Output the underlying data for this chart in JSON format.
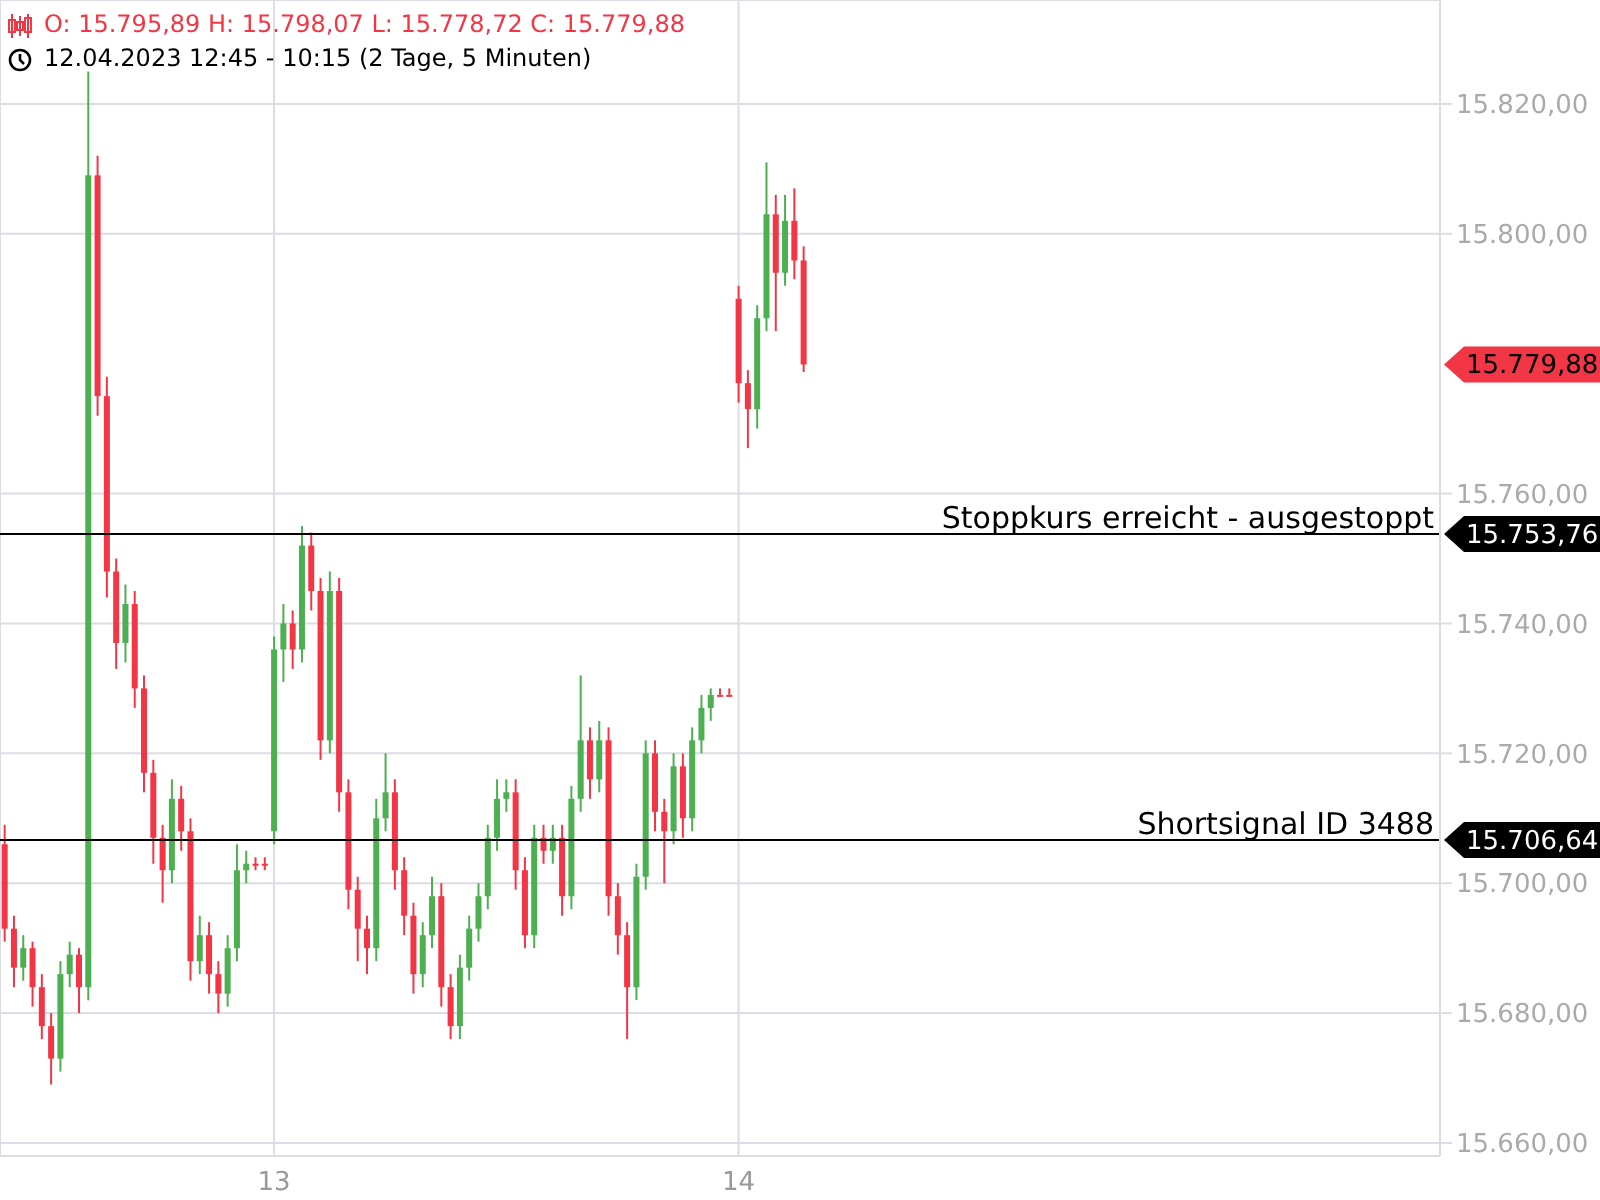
{
  "chart_data": {
    "type": "candlestick",
    "title": "O: 15.795,89  H: 15.798,07  L: 15.778,72  C: 15.779,88",
    "subtitle": "12.04.2023 12:45 - 10:15  (2 Tage, 5 Minuten)",
    "categories": [
      null,
      null,
      null,
      null,
      null,
      null,
      null,
      null,
      null,
      null,
      null,
      null,
      null,
      null,
      null,
      null,
      null,
      null,
      null,
      null,
      null,
      null,
      null,
      null,
      null,
      null,
      null,
      null,
      null,
      "13",
      null,
      null,
      null,
      null,
      null,
      null,
      null,
      null,
      null,
      null,
      null,
      null,
      null,
      null,
      null,
      null,
      null,
      null,
      null,
      null,
      null,
      null,
      null,
      null,
      null,
      null,
      null,
      null,
      null,
      null,
      null,
      null,
      null,
      null,
      null,
      null,
      null,
      null,
      null,
      null,
      null,
      null,
      null,
      null,
      null,
      null,
      null,
      null,
      null,
      "14",
      null,
      null,
      null,
      null,
      null,
      null,
      null,
      null,
      null,
      null,
      null,
      null,
      null,
      null,
      null,
      null,
      null,
      null,
      null,
      null,
      null,
      null,
      null,
      null,
      null,
      null,
      null,
      null,
      null,
      null,
      null,
      null,
      null,
      null,
      null,
      null,
      null,
      null,
      null,
      null,
      null,
      null,
      null,
      null,
      null,
      null,
      null,
      null,
      null,
      null,
      null,
      null,
      null,
      null,
      null,
      null,
      null,
      null,
      null,
      null,
      null,
      null,
      null,
      null,
      null,
      null,
      null,
      null,
      null,
      null,
      null,
      null,
      null,
      null,
      null
    ],
    "ohlc": [
      [
        15706,
        15709,
        15691,
        15693
      ],
      [
        15693,
        15695,
        15684,
        15687
      ],
      [
        15687,
        15692,
        15685,
        15690
      ],
      [
        15690,
        15691,
        15681,
        15684
      ],
      [
        15684,
        15686,
        15676,
        15678
      ],
      [
        15678,
        15680,
        15669,
        15673
      ],
      [
        15673,
        15688,
        15671,
        15686
      ],
      [
        15686,
        15691,
        15684,
        15689
      ],
      [
        15689,
        15690,
        15680,
        15684
      ],
      [
        15684,
        15825,
        15682,
        15809
      ],
      [
        15809,
        15812,
        15772,
        15775
      ],
      [
        15775,
        15778,
        15744,
        15748
      ],
      [
        15748,
        15750,
        15733,
        15737
      ],
      [
        15737,
        15746,
        15734,
        15743
      ],
      [
        15743,
        15745,
        15727,
        15730
      ],
      [
        15730,
        15732,
        15714,
        15717
      ],
      [
        15717,
        15719,
        15703,
        15707
      ],
      [
        15707,
        15709,
        15697,
        15702
      ],
      [
        15702,
        15716,
        15700,
        15713
      ],
      [
        15713,
        15715,
        15705,
        15708
      ],
      [
        15708,
        15710,
        15685,
        15688
      ],
      [
        15688,
        15695,
        15686,
        15692
      ],
      [
        15692,
        15694,
        15683,
        15686
      ],
      [
        15686,
        15688,
        15680,
        15683
      ],
      [
        15683,
        15692,
        15681,
        15690
      ],
      [
        15690,
        15706,
        15688,
        15702
      ],
      [
        15702,
        15705,
        15700,
        15703
      ],
      [
        15703,
        15704,
        15702,
        15703
      ],
      [
        15703,
        15704,
        15702,
        15703
      ],
      [
        15708,
        15738,
        15706,
        15736
      ],
      [
        15736,
        15743,
        15731,
        15740
      ],
      [
        15740,
        15742,
        15733,
        15736
      ],
      [
        15736,
        15755,
        15734,
        15752
      ],
      [
        15752,
        15754,
        15742,
        15745
      ],
      [
        15745,
        15747,
        15719,
        15722
      ],
      [
        15722,
        15748,
        15720,
        15745
      ],
      [
        15745,
        15747,
        15711,
        15714
      ],
      [
        15714,
        15716,
        15696,
        15699
      ],
      [
        15699,
        15701,
        15688,
        15693
      ],
      [
        15693,
        15695,
        15686,
        15690
      ],
      [
        15690,
        15713,
        15688,
        15710
      ],
      [
        15710,
        15720,
        15708,
        15714
      ],
      [
        15714,
        15716,
        15699,
        15702
      ],
      [
        15702,
        15704,
        15692,
        15695
      ],
      [
        15695,
        15697,
        15683,
        15686
      ],
      [
        15686,
        15694,
        15684,
        15692
      ],
      [
        15692,
        15701,
        15690,
        15698
      ],
      [
        15698,
        15700,
        15681,
        15684
      ],
      [
        15684,
        15686,
        15676,
        15678
      ],
      [
        15678,
        15689,
        15676,
        15687
      ],
      [
        15687,
        15695,
        15685,
        15693
      ],
      [
        15693,
        15700,
        15691,
        15698
      ],
      [
        15698,
        15709,
        15696,
        15707
      ],
      [
        15707,
        15716,
        15705,
        15713
      ],
      [
        15713,
        15716,
        15711,
        15714
      ],
      [
        15714,
        15716,
        15699,
        15702
      ],
      [
        15702,
        15704,
        15690,
        15692
      ],
      [
        15692,
        15709,
        15690,
        15707
      ],
      [
        15707,
        15709,
        15703,
        15705
      ],
      [
        15705,
        15709,
        15703,
        15707
      ],
      [
        15707,
        15709,
        15695,
        15698
      ],
      [
        15698,
        15715,
        15696,
        15713
      ],
      [
        15713,
        15732,
        15711,
        15722
      ],
      [
        15722,
        15724,
        15713,
        15716
      ],
      [
        15716,
        15725,
        15714,
        15722
      ],
      [
        15722,
        15724,
        15695,
        15698
      ],
      [
        15698,
        15700,
        15689,
        15692
      ],
      [
        15692,
        15694,
        15676,
        15684
      ],
      [
        15684,
        15703,
        15682,
        15701
      ],
      [
        15701,
        15722,
        15699,
        15720
      ],
      [
        15720,
        15722,
        15708,
        15711
      ],
      [
        15711,
        15713,
        15700,
        15708
      ],
      [
        15708,
        15720,
        15706,
        15718
      ],
      [
        15718,
        15720,
        15707,
        15710
      ],
      [
        15710,
        15724,
        15708,
        15722
      ],
      [
        15722,
        15729,
        15720,
        15727
      ],
      [
        15727,
        15730,
        15725,
        15729
      ],
      [
        15729,
        15730,
        15729,
        15729
      ],
      [
        15729,
        15730,
        15729,
        15729
      ],
      [
        15790,
        15792,
        15774,
        15777
      ],
      [
        15777,
        15779,
        15767,
        15773
      ],
      [
        15773,
        15789,
        15770,
        15787
      ],
      [
        15787,
        15811,
        15785,
        15803
      ],
      [
        15803,
        15806,
        15785,
        15794
      ],
      [
        15794,
        15806,
        15792,
        15802
      ],
      [
        15802,
        15807,
        15793,
        15795.89
      ],
      [
        15795.89,
        15798.07,
        15778.72,
        15779.88
      ],
      null,
      null,
      null,
      null,
      null,
      null,
      null,
      null,
      null,
      null,
      null,
      null,
      null,
      null,
      null,
      null,
      null,
      null,
      null,
      null,
      null,
      null,
      null,
      null,
      null,
      null,
      null,
      null,
      null,
      null,
      null,
      null,
      null,
      null,
      null,
      null,
      null,
      null,
      null,
      null,
      null,
      null,
      null,
      null,
      null,
      null,
      null,
      null,
      null,
      null,
      null,
      null,
      null,
      null,
      null,
      null,
      null,
      null,
      null,
      null,
      null,
      null,
      null,
      null,
      null,
      null,
      null,
      null
    ],
    "colors": [
      "#f23645",
      "#f23645",
      "#4caf50",
      "#f23645",
      "#f23645",
      "#f23645",
      "#4caf50",
      "#4caf50",
      "#f23645",
      "#4caf50",
      "#f23645",
      "#f23645",
      "#f23645",
      "#4caf50",
      "#f23645",
      "#f23645",
      "#f23645",
      "#f23645",
      "#4caf50",
      "#f23645",
      "#f23645",
      "#4caf50",
      "#f23645",
      "#f23645",
      "#4caf50",
      "#4caf50",
      "#4caf50",
      "#f23645",
      "#f23645",
      "#4caf50",
      "#4caf50",
      "#f23645",
      "#4caf50",
      "#f23645",
      "#f23645",
      "#4caf50",
      "#f23645",
      "#f23645",
      "#f23645",
      "#f23645",
      "#4caf50",
      "#4caf50",
      "#f23645",
      "#f23645",
      "#f23645",
      "#4caf50",
      "#4caf50",
      "#f23645",
      "#f23645",
      "#4caf50",
      "#4caf50",
      "#4caf50",
      "#4caf50",
      "#4caf50",
      "#4caf50",
      "#f23645",
      "#f23645",
      "#4caf50",
      "#f23645",
      "#4caf50",
      "#f23645",
      "#4caf50",
      "#4caf50",
      "#f23645",
      "#4caf50",
      "#f23645",
      "#f23645",
      "#f23645",
      "#4caf50",
      "#4caf50",
      "#f23645",
      "#f23645",
      "#4caf50",
      "#f23645",
      "#4caf50",
      "#4caf50",
      "#4caf50",
      "#f23645",
      "#f23645",
      "#f23645",
      "#f23645",
      "#4caf50",
      "#4caf50",
      "#f23645",
      "#4caf50",
      "#f23645",
      "#f23645",
      null,
      null,
      null,
      null,
      null,
      null,
      null,
      null,
      null,
      null,
      null,
      null,
      null,
      null,
      null,
      null,
      null,
      null,
      null,
      null,
      null,
      null,
      null,
      null,
      null,
      null,
      null,
      null,
      null,
      null,
      null,
      null,
      null,
      null,
      null,
      null,
      null,
      null,
      null,
      null,
      null,
      null,
      null,
      null,
      null,
      null,
      null,
      null,
      null,
      null,
      null,
      null,
      null,
      null,
      null,
      null,
      null,
      null,
      null,
      null,
      null,
      null,
      null,
      null,
      null,
      null,
      null,
      null
    ],
    "ylim": [
      15658,
      15836
    ],
    "yticks": [
      {
        "value": 15660,
        "label": "15.660,00"
      },
      {
        "value": 15680,
        "label": "15.680,00"
      },
      {
        "value": 15700,
        "label": "15.700,00"
      },
      {
        "value": 15720,
        "label": "15.720,00"
      },
      {
        "value": 15740,
        "label": "15.740,00"
      },
      {
        "value": 15760,
        "label": "15.760,00"
      },
      {
        "value": 15800,
        "label": "15.800,00"
      },
      {
        "value": 15820,
        "label": "15.820,00"
      }
    ],
    "grid": true,
    "ref_lines": [
      {
        "axis": "y",
        "value": 15753.76,
        "label": "Stoppkurs erreicht - ausgestoppt",
        "color": "#000000"
      },
      {
        "axis": "y",
        "value": 15706.64,
        "label": "Shortsignal ID 3488",
        "color": "#000000"
      }
    ],
    "annotations": [
      "15.779,88",
      "15.753,76",
      "15.706,64"
    ]
  }
}
